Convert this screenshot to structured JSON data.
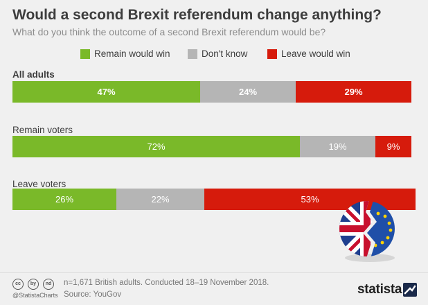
{
  "header": {
    "title": "Would a second Brexit referendum change anything?",
    "subtitle": "What do you think the outcome of a second Brexit referendum would be?"
  },
  "colors": {
    "remain": "#7ab929",
    "dont_know": "#b5b5b5",
    "leave": "#d61b0c"
  },
  "chart_data": {
    "type": "bar",
    "orientation": "horizontal-stacked-100",
    "title": "Would a second Brexit referendum change anything?",
    "subtitle": "What do you think the outcome of a second Brexit referendum would be?",
    "categories": [
      "All adults",
      "Remain voters",
      "Leave voters"
    ],
    "series": [
      {
        "name": "Remain would win",
        "values": [
          47,
          72,
          26
        ],
        "labels": [
          "47%",
          "72%",
          "26%"
        ],
        "color": "#7ab929"
      },
      {
        "name": "Don't know",
        "values": [
          24,
          19,
          22
        ],
        "labels": [
          "24%",
          "19%",
          "22%"
        ],
        "color": "#b5b5b5"
      },
      {
        "name": "Leave would win",
        "values": [
          29,
          9,
          53
        ],
        "labels": [
          "29%",
          "9%",
          "53%"
        ],
        "color": "#d61b0c"
      }
    ],
    "legend_position": "top",
    "grid": false
  },
  "footer": {
    "cc_icons": [
      "cc",
      "by",
      "nd"
    ],
    "handle": "@StatistaCharts",
    "note": "n=1,671 British adults. Conducted 18–19 November 2018.",
    "source": "Source: YouGov",
    "brand": "statista"
  },
  "icons": [
    "creative-commons-icon",
    "attribution-icon",
    "no-derivatives-icon",
    "uk-eu-flag-icon",
    "statista-logo-icon"
  ]
}
